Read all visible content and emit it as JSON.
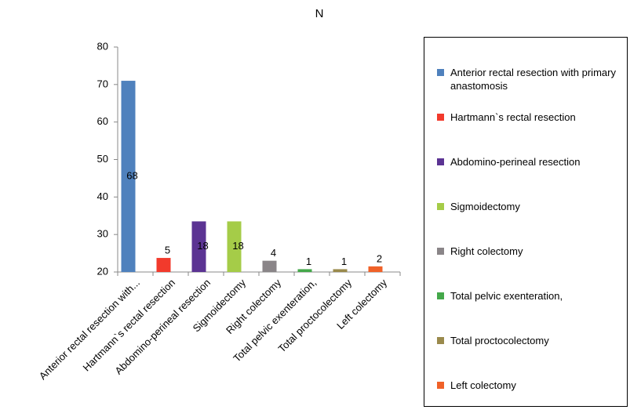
{
  "chart_data": {
    "type": "bar",
    "title": "N",
    "categories": [
      "Anterior rectal resection with...",
      "Hartmann`s rectal resection",
      "Abdomino-perineal resection",
      "Sigmoidectomy",
      "Right colectomy",
      "Total pelvic exenteration,",
      "Total proctocolectomy",
      "Left colectomy"
    ],
    "legend": [
      "Anterior rectal resection with primary anastomosis",
      "Hartmann`s rectal resection",
      "Abdomino-perineal resection",
      "Sigmoidectomy",
      "Right colectomy",
      "Total pelvic exenteration,",
      "Total proctocolectomy",
      "Left colectomy"
    ],
    "values": [
      68,
      5,
      18,
      18,
      4,
      1,
      1,
      2
    ],
    "colors": [
      "#4f81bd",
      "#f23a2c",
      "#5b3393",
      "#a5cc48",
      "#8a8588",
      "#44a84a",
      "#9a8a4c",
      "#f06128"
    ],
    "ylim": [
      0,
      80
    ],
    "yticks": [
      {
        "value": 0,
        "label": "20"
      },
      {
        "value": 13.33,
        "label": "30"
      },
      {
        "value": 26.67,
        "label": "40"
      },
      {
        "value": 40,
        "label": "50"
      },
      {
        "value": 53.33,
        "label": "60"
      },
      {
        "value": 66.67,
        "label": "70"
      },
      {
        "value": 80,
        "label": "80"
      }
    ],
    "grid": false
  }
}
